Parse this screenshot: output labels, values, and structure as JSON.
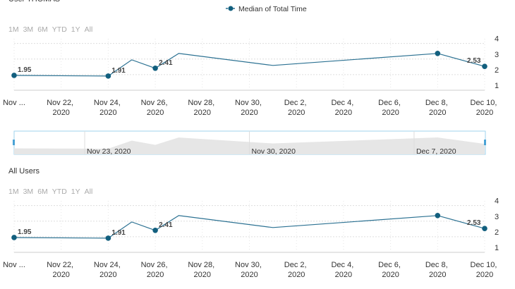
{
  "chart_data": [
    {
      "type": "line",
      "title": "User THOMAS",
      "range_buttons": [
        "1M",
        "3M",
        "6M",
        "YTD",
        "1Y",
        "All"
      ],
      "x": [
        "2020-11-20",
        "2020-11-24",
        "2020-11-25",
        "2020-11-26",
        "2020-11-27",
        "2020-12-01",
        "2020-12-08",
        "2020-12-10"
      ],
      "series": [
        {
          "name": "Median of Total Time",
          "color": "#2b7192",
          "values": [
            1.95,
            1.91,
            2.95,
            2.41,
            3.36,
            2.59,
            3.36,
            2.53
          ],
          "markers": [
            true,
            true,
            false,
            true,
            false,
            false,
            true,
            true
          ],
          "value_labels": [
            "1.95",
            "1.91",
            null,
            "2.41",
            null,
            null,
            null,
            "2.53"
          ]
        }
      ],
      "xlim": [
        "2020-11-20",
        "2020-12-10"
      ],
      "xticks": [
        {
          "value": "2020-11-20",
          "label": "Nov ..."
        },
        {
          "value": "2020-11-22",
          "label": "Nov 22, 2020"
        },
        {
          "value": "2020-11-24",
          "label": "Nov 24, 2020"
        },
        {
          "value": "2020-11-26",
          "label": "Nov 26, 2020"
        },
        {
          "value": "2020-11-28",
          "label": "Nov 28, 2020"
        },
        {
          "value": "2020-11-30",
          "label": "Nov 30, 2020"
        },
        {
          "value": "2020-12-02",
          "label": "Dec 2, 2020"
        },
        {
          "value": "2020-12-04",
          "label": "Dec 4, 2020"
        },
        {
          "value": "2020-12-06",
          "label": "Dec 6, 2020"
        },
        {
          "value": "2020-12-08",
          "label": "Dec 8, 2020"
        },
        {
          "value": "2020-12-10",
          "label": "Dec 10, 2020"
        }
      ],
      "ylim": [
        1,
        4.3
      ],
      "yticks": [
        1,
        2,
        3,
        4
      ],
      "grid": true,
      "navigator_ticks": [
        {
          "value": "2020-11-23",
          "label": "Nov 23, 2020"
        },
        {
          "value": "2020-11-30",
          "label": "Nov 30, 2020"
        },
        {
          "value": "2020-12-07",
          "label": "Dec 7, 2020"
        }
      ]
    },
    {
      "type": "line",
      "title": "All Users",
      "range_buttons": [
        "1M",
        "3M",
        "6M",
        "YTD",
        "1Y",
        "All"
      ],
      "x": [
        "2020-11-20",
        "2020-11-24",
        "2020-11-25",
        "2020-11-26",
        "2020-11-27",
        "2020-12-01",
        "2020-12-08",
        "2020-12-10"
      ],
      "series": [
        {
          "color": "#2b7192",
          "values": [
            1.95,
            1.91,
            2.95,
            2.41,
            3.36,
            2.59,
            3.36,
            2.53
          ],
          "markers": [
            true,
            true,
            false,
            true,
            false,
            false,
            true,
            true
          ],
          "value_labels": [
            "1.95",
            "1.91",
            null,
            "2.41",
            null,
            null,
            null,
            "2.53"
          ]
        }
      ],
      "xlim": [
        "2020-11-20",
        "2020-12-10"
      ],
      "xticks": [
        {
          "value": "2020-11-20",
          "label": "Nov ..."
        },
        {
          "value": "2020-11-22",
          "label": "Nov 22, 2020"
        },
        {
          "value": "2020-11-24",
          "label": "Nov 24, 2020"
        },
        {
          "value": "2020-11-26",
          "label": "Nov 26, 2020"
        },
        {
          "value": "2020-11-28",
          "label": "Nov 28, 2020"
        },
        {
          "value": "2020-11-30",
          "label": "Nov 30, 2020"
        },
        {
          "value": "2020-12-02",
          "label": "Dec 2, 2020"
        },
        {
          "value": "2020-12-04",
          "label": "Dec 4, 2020"
        },
        {
          "value": "2020-12-06",
          "label": "Dec 6, 2020"
        },
        {
          "value": "2020-12-08",
          "label": "Dec 8, 2020"
        },
        {
          "value": "2020-12-10",
          "label": "Dec 10, 2020"
        }
      ],
      "ylim": [
        1,
        4.3
      ],
      "yticks": [
        1,
        2,
        3,
        4
      ],
      "grid": true
    }
  ]
}
